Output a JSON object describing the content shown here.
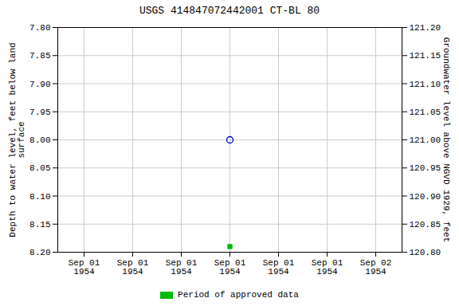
{
  "chart_data": {
    "type": "scatter",
    "title": "USGS 414847072442001  CT-BL    80",
    "ylabel": "Depth to water level, feet below land\nsurface",
    "y2label": "Groundwater level above NGVD 1929, feet",
    "categories": [
      "Sep 01\n1954",
      "Sep 01\n1954",
      "Sep 01\n1954",
      "Sep 01\n1954",
      "Sep 01\n1954",
      "Sep 01\n1954",
      "Sep 02\n1954"
    ],
    "series": [
      {
        "color": "#0000cc",
        "marker": "circle",
        "values": [
          null,
          null,
          null,
          8.0,
          null,
          null,
          null
        ]
      },
      {
        "name": "Period of approved data",
        "color": "#00bb00",
        "marker": "square",
        "values": [
          null,
          null,
          null,
          8.19,
          null,
          null,
          null
        ]
      }
    ],
    "ylim": [
      8.2,
      7.8
    ],
    "yticks": [
      {
        "value": 7.8,
        "label": "7.80"
      },
      7.85,
      {
        "value": 7.9,
        "label": "7.90"
      },
      7.95,
      {
        "value": 8,
        "label": "8.00"
      },
      8.05,
      {
        "value": 8.1,
        "label": "8.10"
      },
      8.15,
      {
        "value": 8.2,
        "label": "8.20"
      }
    ],
    "y2lim": [
      120.8,
      121.2
    ],
    "y2ticks": [
      {
        "value": 121.2,
        "label": "121.20"
      },
      121.15,
      {
        "value": 121.1,
        "label": "121.10"
      },
      121.05,
      {
        "value": 121,
        "label": "121.00"
      },
      120.95,
      {
        "value": 120.9,
        "label": "120.90"
      },
      120.85,
      {
        "value": 120.8,
        "label": "120.80"
      }
    ],
    "grid": true,
    "legend": "bottom"
  }
}
